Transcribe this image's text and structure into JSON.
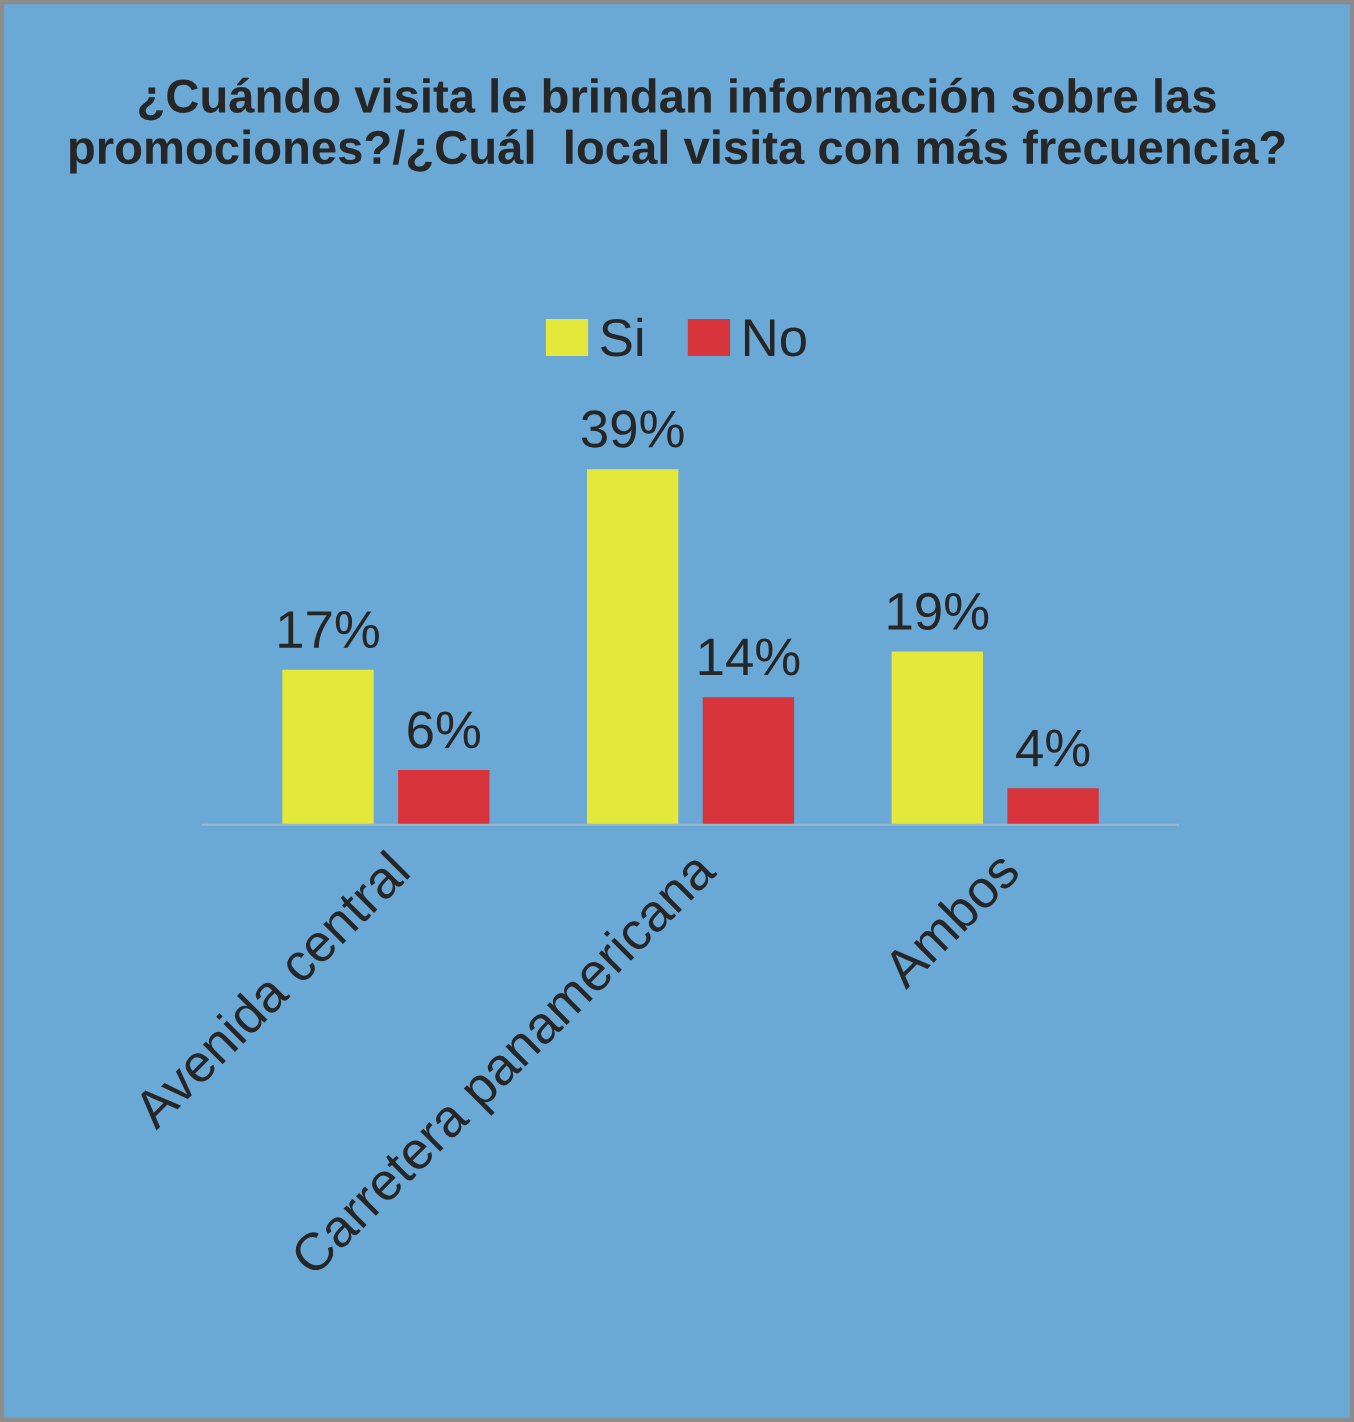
{
  "chart_data": {
    "type": "bar",
    "title": "¿Cuándo visita le brindan información sobre las promociones?/¿Cuál  local visita con más frecuencia?",
    "categories": [
      "Avenida central",
      "Carretera panamericana",
      "Ambos"
    ],
    "series": [
      {
        "name": "Si",
        "color": "#e3e83a",
        "values": [
          17,
          39,
          19
        ],
        "value_labels": [
          "17%",
          "39%",
          "19%"
        ]
      },
      {
        "name": "No",
        "color": "#d8343c",
        "values": [
          6,
          14,
          4
        ],
        "value_labels": [
          "6%",
          "14%",
          "4%"
        ]
      }
    ],
    "legend": "top"
  }
}
